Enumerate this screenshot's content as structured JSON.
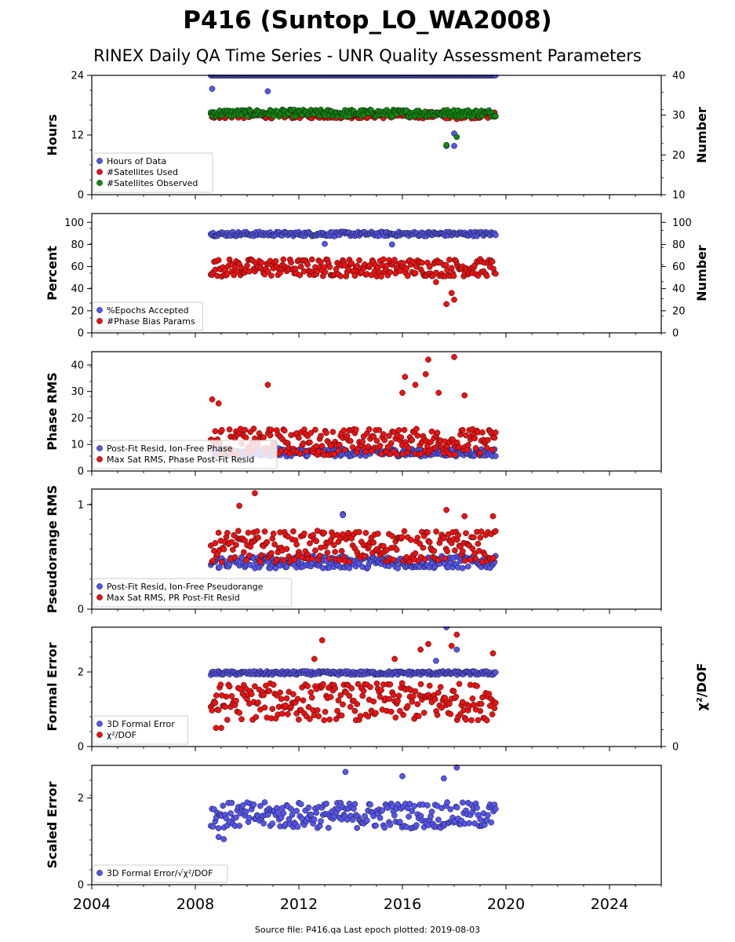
{
  "title": "P416 (Suntop_LO_WA2008)",
  "subtitle": "RINEX Daily QA Time Series - UNR Quality Assessment Parameters",
  "footer": "Source file: P416.qa Last epoch plotted: 2019-08-03",
  "x_axis": {
    "range": [
      2004,
      2026
    ],
    "ticks": [
      "2004",
      "2008",
      "2012",
      "2016",
      "2020",
      "2024"
    ]
  },
  "colors": {
    "blue": "#5555ee",
    "red": "#ee1111",
    "green": "#118811"
  },
  "chart_data": [
    {
      "type": "scatter",
      "ylabel": "Hours",
      "ylabel_right": "Number",
      "ylim": [
        0,
        24
      ],
      "yticks": [
        "0",
        "12",
        "24"
      ],
      "ylim_right": [
        10,
        40
      ],
      "yticks_right": [
        "10",
        "20",
        "30",
        "40"
      ],
      "legend_position": "lower-left",
      "series": [
        {
          "name": "Hours of Data",
          "color": "blue",
          "axis": "left",
          "x_range": [
            2008.6,
            2019.6
          ],
          "base": 24,
          "spread": 0,
          "outliers": [
            [
              2008.65,
              21.3
            ],
            [
              2010.8,
              20.8
            ],
            [
              2017.7,
              9.8
            ],
            [
              2018.0,
              9.8
            ],
            [
              2018.0,
              12.3
            ]
          ]
        },
        {
          "name": "#Satellites Used",
          "color": "red",
          "axis": "right",
          "x_range": [
            2008.6,
            2019.6
          ],
          "base": 30,
          "spread": 0.8,
          "outliers": [
            [
              2009.6,
              30.2
            ],
            [
              2017.7,
              29.2
            ],
            [
              2018.1,
              29.0
            ]
          ]
        },
        {
          "name": "#Satellites Observed",
          "color": "green",
          "axis": "right",
          "x_range": [
            2008.6,
            2019.6
          ],
          "base": 30.5,
          "spread": 0.9,
          "outliers": [
            [
              2017.7,
              22.5
            ],
            [
              2018.1,
              24.5
            ]
          ]
        }
      ]
    },
    {
      "type": "scatter",
      "ylabel": "Percent",
      "ylabel_right": "Number",
      "ylim": [
        0,
        108
      ],
      "yticks": [
        "0",
        "20",
        "40",
        "60",
        "80",
        "100"
      ],
      "ylim_right": [
        0,
        108
      ],
      "yticks_right": [
        "0",
        "20",
        "40",
        "60",
        "80",
        "100"
      ],
      "legend_position": "lower-left",
      "series": [
        {
          "name": "%Epochs Accepted",
          "color": "blue",
          "axis": "left",
          "x_range": [
            2008.6,
            2019.6
          ],
          "base": 89.5,
          "spread": 2,
          "outliers": [
            [
              2013.0,
              80.5
            ],
            [
              2015.6,
              80.0
            ]
          ]
        },
        {
          "name": "#Phase Bias Params",
          "color": "red",
          "axis": "right",
          "x_range": [
            2008.6,
            2019.6
          ],
          "base": 59,
          "spread": 8,
          "outliers": [
            [
              2017.7,
              26
            ],
            [
              2017.3,
              46
            ],
            [
              2018.0,
              30
            ],
            [
              2017.9,
              36
            ]
          ]
        }
      ]
    },
    {
      "type": "scatter",
      "ylabel": "Phase RMS",
      "ylim": [
        0,
        45
      ],
      "yticks": [
        "0",
        "10",
        "20",
        "30",
        "40"
      ],
      "legend_position": "lower-left",
      "series": [
        {
          "name": "Post-Fit Resid, Ion-Free Phase",
          "color": "blue",
          "axis": "left",
          "x_range": [
            2008.6,
            2019.6
          ],
          "base": 7,
          "spread": 1.5,
          "outliers": []
        },
        {
          "name": "Max Sat RMS, Phase Post-Fit Resid",
          "color": "red",
          "axis": "left",
          "x_range": [
            2008.6,
            2019.6
          ],
          "base": 11,
          "spread": 5,
          "outliers": [
            [
              2008.65,
              27
            ],
            [
              2008.9,
              25.5
            ],
            [
              2010.8,
              32.5
            ],
            [
              2016.1,
              35.5
            ],
            [
              2017.0,
              42
            ],
            [
              2018.0,
              43
            ],
            [
              2016.9,
              36.5
            ],
            [
              2017.4,
              29.5
            ],
            [
              2016.5,
              32.5
            ],
            [
              2018.4,
              28.5
            ],
            [
              2016.0,
              29.5
            ]
          ]
        }
      ]
    },
    {
      "type": "scatter",
      "ylabel": "Pseudorange RMS",
      "ylim": [
        0,
        1.15
      ],
      "yticks": [
        "0",
        "1"
      ],
      "legend_position": "lower-left",
      "series": [
        {
          "name": "Post-Fit Resid, Ion-Free Pseudorange",
          "color": "blue",
          "axis": "left",
          "x_range": [
            2008.6,
            2019.6
          ],
          "base": 0.45,
          "spread": 0.06,
          "outliers": [
            [
              2013.7,
              0.91
            ],
            [
              2013.7,
              0.9
            ]
          ]
        },
        {
          "name": "Max Sat RMS, PR Post-Fit Resid",
          "color": "red",
          "axis": "left",
          "x_range": [
            2008.6,
            2019.6
          ],
          "base": 0.6,
          "spread": 0.15,
          "outliers": [
            [
              2010.3,
              1.11
            ],
            [
              2009.7,
              0.99
            ],
            [
              2017.7,
              0.95
            ],
            [
              2018.4,
              0.89
            ],
            [
              2019.5,
              0.89
            ]
          ]
        }
      ]
    },
    {
      "type": "scatter",
      "ylabel": "Formal Error",
      "ylabel_right": "χ²/DOF",
      "ylim": [
        0,
        3.2
      ],
      "yticks": [
        "0",
        "2"
      ],
      "yticks_right": [
        "0"
      ],
      "legend_position": "lower-left",
      "series": [
        {
          "name": "3D Formal Error",
          "color": "blue",
          "axis": "left",
          "x_range": [
            2008.6,
            2019.6
          ],
          "base": 1.97,
          "spread": 0.05,
          "outliers": [
            [
              2017.7,
              3.2
            ],
            [
              2018.1,
              2.6
            ],
            [
              2017.3,
              2.3
            ]
          ]
        },
        {
          "name": "χ²/DOF",
          "color": "red",
          "axis": "left",
          "x_range": [
            2008.6,
            2019.6
          ],
          "base": 1.2,
          "spread": 0.5,
          "outliers": [
            [
              2012.9,
              2.85
            ],
            [
              2012.6,
              2.35
            ],
            [
              2015.7,
              2.35
            ],
            [
              2016.7,
              2.6
            ],
            [
              2017.0,
              2.75
            ],
            [
              2017.9,
              2.7
            ],
            [
              2018.1,
              3.0
            ],
            [
              2019.5,
              2.5
            ],
            [
              2009.0,
              0.5
            ],
            [
              2008.8,
              0.5
            ]
          ]
        }
      ]
    },
    {
      "type": "scatter",
      "ylabel": "Scaled Error",
      "ylim": [
        0,
        2.75
      ],
      "yticks": [
        "0",
        "2"
      ],
      "legend_position": "lower-left",
      "series": [
        {
          "name": "3D Formal Error/√χ²/DOF",
          "color": "blue",
          "axis": "left",
          "x_range": [
            2008.6,
            2019.6
          ],
          "base": 1.6,
          "spread": 0.3,
          "outliers": [
            [
              2008.9,
              1.1
            ],
            [
              2009.1,
              1.05
            ],
            [
              2013.8,
              2.6
            ],
            [
              2016.0,
              2.5
            ],
            [
              2018.1,
              2.7
            ],
            [
              2017.6,
              2.45
            ]
          ]
        }
      ]
    }
  ]
}
